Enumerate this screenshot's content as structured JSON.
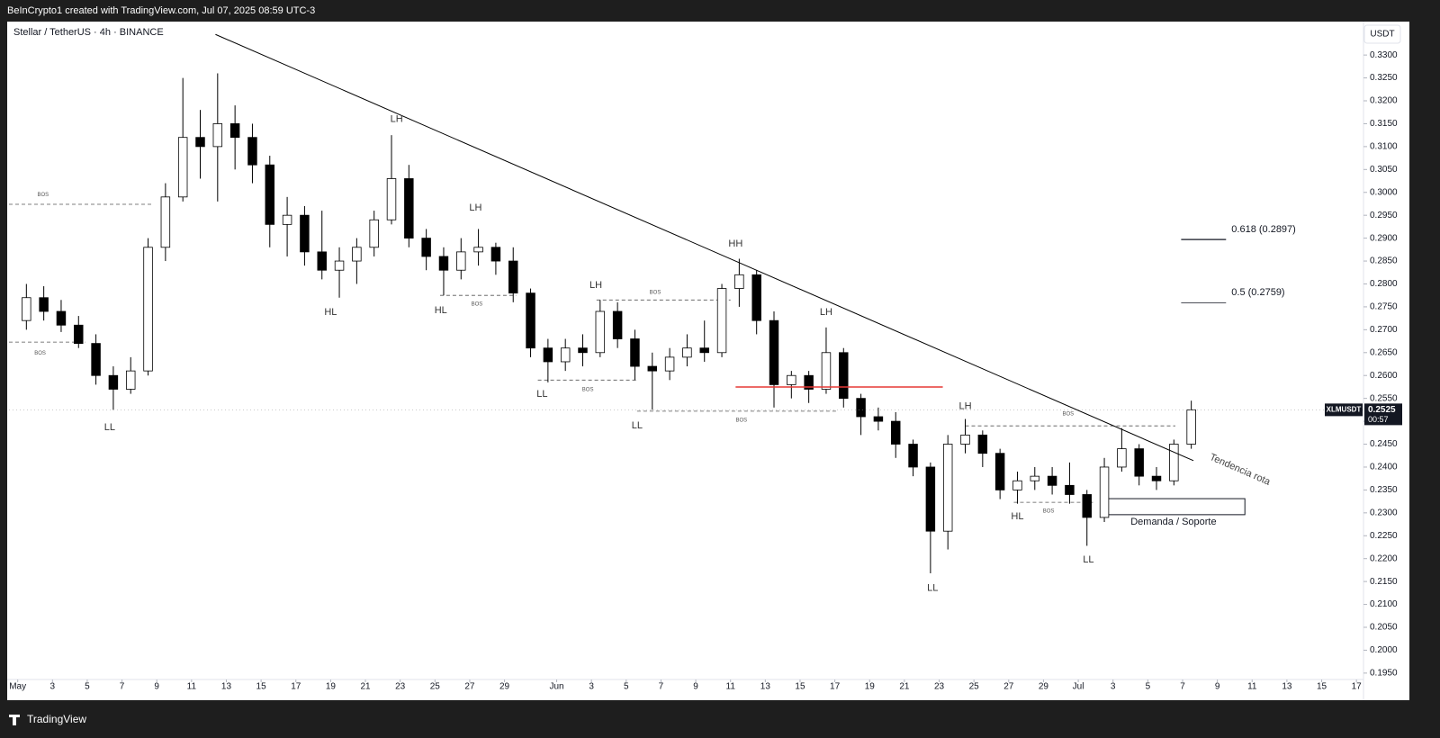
{
  "header": {
    "credit": "BeInCrypto1 created with TradingView.com, Jul 07, 2025 08:59 UTC-3",
    "symbol": "Stellar / TetherUS · 4h · BINANCE",
    "currency": "USDT"
  },
  "footer": {
    "brand": "TradingView"
  },
  "chart_data": {
    "type": "candlestick",
    "up_color": "#ffffff",
    "down_color": "#000000",
    "wick_color": "#000000",
    "grid": false,
    "x": [
      "2025-05-01",
      "2025-05-02",
      "2025-05-03",
      "2025-05-04",
      "2025-05-05",
      "2025-05-06",
      "2025-05-07",
      "2025-05-08",
      "2025-05-09",
      "2025-05-10",
      "2025-05-11",
      "2025-05-12",
      "2025-05-13",
      "2025-05-14",
      "2025-05-15",
      "2025-05-16",
      "2025-05-17",
      "2025-05-18",
      "2025-05-19",
      "2025-05-20",
      "2025-05-21",
      "2025-05-22",
      "2025-05-23",
      "2025-05-24",
      "2025-05-25",
      "2025-05-26",
      "2025-05-27",
      "2025-05-28",
      "2025-05-29",
      "2025-05-30",
      "2025-05-31",
      "2025-06-01",
      "2025-06-02",
      "2025-06-03",
      "2025-06-04",
      "2025-06-05",
      "2025-06-06",
      "2025-06-07",
      "2025-06-08",
      "2025-06-09",
      "2025-06-10",
      "2025-06-11",
      "2025-06-12",
      "2025-06-13",
      "2025-06-14",
      "2025-06-15",
      "2025-06-16",
      "2025-06-17",
      "2025-06-18",
      "2025-06-19",
      "2025-06-20",
      "2025-06-21",
      "2025-06-22",
      "2025-06-23",
      "2025-06-24",
      "2025-06-25",
      "2025-06-26",
      "2025-06-27",
      "2025-06-28",
      "2025-06-29",
      "2025-06-30",
      "2025-07-01",
      "2025-07-02",
      "2025-07-03",
      "2025-07-04",
      "2025-07-05",
      "2025-07-06",
      "2025-07-07"
    ],
    "open": [
      0.272,
      0.277,
      0.274,
      0.271,
      0.267,
      0.26,
      0.257,
      0.261,
      0.288,
      0.299,
      0.312,
      0.31,
      0.315,
      0.312,
      0.306,
      0.293,
      0.295,
      0.287,
      0.283,
      0.285,
      0.288,
      0.294,
      0.303,
      0.29,
      0.286,
      0.283,
      0.287,
      0.288,
      0.285,
      0.278,
      0.266,
      0.263,
      0.266,
      0.265,
      0.274,
      0.268,
      0.262,
      0.261,
      0.264,
      0.266,
      0.265,
      0.279,
      0.282,
      0.272,
      0.258,
      0.26,
      0.257,
      0.265,
      0.255,
      0.251,
      0.25,
      0.245,
      0.24,
      0.226,
      0.245,
      0.247,
      0.243,
      0.235,
      0.237,
      0.238,
      0.236,
      0.234,
      0.229,
      0.24,
      0.244,
      0.238,
      0.237,
      0.245
    ],
    "high": [
      0.28,
      0.2795,
      0.2765,
      0.273,
      0.269,
      0.262,
      0.264,
      0.29,
      0.302,
      0.325,
      0.318,
      0.326,
      0.319,
      0.315,
      0.308,
      0.299,
      0.297,
      0.296,
      0.288,
      0.29,
      0.296,
      0.3125,
      0.306,
      0.292,
      0.288,
      0.29,
      0.292,
      0.289,
      0.288,
      0.279,
      0.268,
      0.268,
      0.269,
      0.2765,
      0.276,
      0.27,
      0.265,
      0.266,
      0.269,
      0.272,
      0.28,
      0.2855,
      0.283,
      0.274,
      0.261,
      0.261,
      0.2705,
      0.266,
      0.256,
      0.253,
      0.252,
      0.246,
      0.241,
      0.247,
      0.2505,
      0.248,
      0.244,
      0.239,
      0.24,
      0.24,
      0.241,
      0.235,
      0.242,
      0.2485,
      0.245,
      0.24,
      0.246,
      0.2545
    ],
    "low": [
      0.27,
      0.272,
      0.2695,
      0.266,
      0.258,
      0.2525,
      0.256,
      0.26,
      0.285,
      0.298,
      0.303,
      0.298,
      0.305,
      0.302,
      0.288,
      0.286,
      0.284,
      0.281,
      0.277,
      0.28,
      0.286,
      0.293,
      0.288,
      0.283,
      0.2775,
      0.281,
      0.284,
      0.282,
      0.276,
      0.264,
      0.2585,
      0.261,
      0.262,
      0.264,
      0.266,
      0.259,
      0.2525,
      0.259,
      0.262,
      0.263,
      0.264,
      0.275,
      0.269,
      0.253,
      0.255,
      0.254,
      0.256,
      0.253,
      0.247,
      0.248,
      0.242,
      0.238,
      0.2168,
      0.222,
      0.243,
      0.24,
      0.233,
      0.232,
      0.235,
      0.234,
      0.232,
      0.2228,
      0.228,
      0.239,
      0.236,
      0.235,
      0.236,
      0.244
    ],
    "close": [
      0.277,
      0.274,
      0.271,
      0.267,
      0.26,
      0.257,
      0.261,
      0.288,
      0.299,
      0.312,
      0.31,
      0.315,
      0.312,
      0.306,
      0.293,
      0.295,
      0.287,
      0.283,
      0.285,
      0.288,
      0.294,
      0.303,
      0.29,
      0.286,
      0.283,
      0.287,
      0.288,
      0.285,
      0.278,
      0.266,
      0.263,
      0.266,
      0.265,
      0.274,
      0.268,
      0.262,
      0.261,
      0.264,
      0.266,
      0.265,
      0.279,
      0.282,
      0.272,
      0.258,
      0.26,
      0.257,
      0.265,
      0.255,
      0.251,
      0.25,
      0.245,
      0.24,
      0.226,
      0.245,
      0.247,
      0.243,
      0.235,
      0.237,
      0.238,
      0.236,
      0.234,
      0.229,
      0.24,
      0.244,
      0.238,
      0.237,
      0.245,
      0.2525
    ],
    "xlim": [
      "2025-04-30T12:00Z",
      "2025-07-17T06:00Z"
    ],
    "ylim": [
      0.1936,
      0.3373
    ],
    "xticks": [
      {
        "value": "2025-05-01",
        "label": "May"
      },
      {
        "value": "2025-05-03",
        "label": "3"
      },
      {
        "value": "2025-05-05",
        "label": "5"
      },
      {
        "value": "2025-05-07",
        "label": "7"
      },
      {
        "value": "2025-05-09",
        "label": "9"
      },
      {
        "value": "2025-05-11",
        "label": "11"
      },
      {
        "value": "2025-05-13",
        "label": "13"
      },
      {
        "value": "2025-05-15",
        "label": "15"
      },
      {
        "value": "2025-05-17",
        "label": "17"
      },
      {
        "value": "2025-05-19",
        "label": "19"
      },
      {
        "value": "2025-05-21",
        "label": "21"
      },
      {
        "value": "2025-05-23",
        "label": "23"
      },
      {
        "value": "2025-05-25",
        "label": "25"
      },
      {
        "value": "2025-05-27",
        "label": "27"
      },
      {
        "value": "2025-05-29",
        "label": "29"
      },
      {
        "value": "2025-06-01",
        "label": "Jun"
      },
      {
        "value": "2025-06-03",
        "label": "3"
      },
      {
        "value": "2025-06-05",
        "label": "5"
      },
      {
        "value": "2025-06-07",
        "label": "7"
      },
      {
        "value": "2025-06-09",
        "label": "9"
      },
      {
        "value": "2025-06-11",
        "label": "11"
      },
      {
        "value": "2025-06-13",
        "label": "13"
      },
      {
        "value": "2025-06-15",
        "label": "15"
      },
      {
        "value": "2025-06-17",
        "label": "17"
      },
      {
        "value": "2025-06-19",
        "label": "19"
      },
      {
        "value": "2025-06-21",
        "label": "21"
      },
      {
        "value": "2025-06-23",
        "label": "23"
      },
      {
        "value": "2025-06-25",
        "label": "25"
      },
      {
        "value": "2025-06-27",
        "label": "27"
      },
      {
        "value": "2025-06-29",
        "label": "29"
      },
      {
        "value": "2025-07-01",
        "label": "Jul"
      },
      {
        "value": "2025-07-03",
        "label": "3"
      },
      {
        "value": "2025-07-05",
        "label": "5"
      },
      {
        "value": "2025-07-07",
        "label": "7"
      },
      {
        "value": "2025-07-09",
        "label": "9"
      },
      {
        "value": "2025-07-11",
        "label": "11"
      },
      {
        "value": "2025-07-13",
        "label": "13"
      },
      {
        "value": "2025-07-15",
        "label": "15"
      },
      {
        "value": "2025-07-17",
        "label": "17"
      }
    ],
    "yticks": [
      {
        "value": 0.195,
        "label": "0.1950"
      },
      {
        "value": 0.2,
        "label": "0.2000"
      },
      {
        "value": 0.205,
        "label": "0.2050"
      },
      {
        "value": 0.21,
        "label": "0.2100"
      },
      {
        "value": 0.215,
        "label": "0.2150"
      },
      {
        "value": 0.22,
        "label": "0.2200"
      },
      {
        "value": 0.225,
        "label": "0.2250"
      },
      {
        "value": 0.23,
        "label": "0.2300"
      },
      {
        "value": 0.235,
        "label": "0.2350"
      },
      {
        "value": 0.24,
        "label": "0.2400"
      },
      {
        "value": 0.245,
        "label": "0.2450"
      },
      {
        "value": 0.25,
        "label": "0.2500"
      },
      {
        "value": 0.255,
        "label": "0.2550"
      },
      {
        "value": 0.26,
        "label": "0.2600"
      },
      {
        "value": 0.265,
        "label": "0.2650"
      },
      {
        "value": 0.27,
        "label": "0.2700"
      },
      {
        "value": 0.275,
        "label": "0.2750"
      },
      {
        "value": 0.28,
        "label": "0.2800"
      },
      {
        "value": 0.285,
        "label": "0.2850"
      },
      {
        "value": 0.29,
        "label": "0.2900"
      },
      {
        "value": 0.295,
        "label": "0.2950"
      },
      {
        "value": 0.3,
        "label": "0.3000"
      },
      {
        "value": 0.305,
        "label": "0.3050"
      },
      {
        "value": 0.31,
        "label": "0.3100"
      },
      {
        "value": 0.315,
        "label": "0.3150"
      },
      {
        "value": 0.32,
        "label": "0.3200"
      },
      {
        "value": 0.325,
        "label": "0.3250"
      },
      {
        "value": 0.33,
        "label": "0.3300"
      }
    ],
    "trendline": {
      "x": [
        "2025-05-12T09:00Z",
        "2025-07-07T15:00Z"
      ],
      "y": [
        0.3345,
        0.2414
      ],
      "color": "#000000",
      "label": "Tendencia rota",
      "label_x": "2025-07-10T07:00Z",
      "label_y": 0.2394
    },
    "levels": [
      {
        "x": [
          "2025-04-30T12:00Z",
          "2025-05-08T18:00Z"
        ],
        "y": 0.2974
      },
      {
        "x": [
          "2025-04-30T12:00Z",
          "2025-05-04T21:00Z"
        ],
        "y": 0.2673
      },
      {
        "x": [
          "2025-05-25T07:00Z",
          "2025-05-29T16:00Z"
        ],
        "y": 0.2775
      },
      {
        "x": [
          "2025-06-03T07:00Z",
          "2025-06-11T00:00Z"
        ],
        "y": 0.2765
      },
      {
        "x": [
          "2025-05-30T22:00Z",
          "2025-06-05T15:00Z"
        ],
        "y": 0.259
      },
      {
        "x": [
          "2025-06-05T15:00Z",
          "2025-06-17T05:00Z"
        ],
        "y": 0.2522
      },
      {
        "x": [
          "2025-06-24T12:00Z",
          "2025-07-06T14:00Z"
        ],
        "y": 0.249
      },
      {
        "x": [
          "2025-06-27T07:00Z",
          "2025-07-01T23:00Z"
        ],
        "y": 0.2323
      }
    ],
    "bos_labels": [
      {
        "text": "BOS",
        "x": "2025-05-02T11:00Z",
        "y": 0.2995
      },
      {
        "text": "BOS",
        "x": "2025-05-02T07:00Z",
        "y": 0.2649
      },
      {
        "text": "BOS",
        "x": "2025-05-27T10:00Z",
        "y": 0.2756
      },
      {
        "text": "BOS",
        "x": "2025-06-06T16:00Z",
        "y": 0.2781
      },
      {
        "text": "BOS",
        "x": "2025-06-02T19:00Z",
        "y": 0.2569
      },
      {
        "text": "BOS",
        "x": "2025-06-11T15:00Z",
        "y": 0.2502
      },
      {
        "text": "BOS",
        "x": "2025-06-30T10:00Z",
        "y": 0.2516
      },
      {
        "text": "BOS",
        "x": "2025-06-29T07:00Z",
        "y": 0.2304
      }
    ],
    "swing_labels": [
      {
        "text": "LL",
        "x": "2025-05-06T07:00Z",
        "y": 0.2486
      },
      {
        "text": "HL",
        "x": "2025-05-19T00:00Z",
        "y": 0.2738
      },
      {
        "text": "LH",
        "x": "2025-05-22T19:00Z",
        "y": 0.316
      },
      {
        "text": "HL",
        "x": "2025-05-25T08:00Z",
        "y": 0.2742
      },
      {
        "text": "LH",
        "x": "2025-05-27T08:00Z",
        "y": 0.2966
      },
      {
        "text": "LL",
        "x": "2025-05-31T04:00Z",
        "y": 0.2559
      },
      {
        "text": "LH",
        "x": "2025-06-03T06:00Z",
        "y": 0.2797
      },
      {
        "text": "LL",
        "x": "2025-06-05T15:00Z",
        "y": 0.249
      },
      {
        "text": "HH",
        "x": "2025-06-11T07:00Z",
        "y": 0.2887
      },
      {
        "text": "LH",
        "x": "2025-06-16T12:00Z",
        "y": 0.2738
      },
      {
        "text": "LL",
        "x": "2025-06-22T15:00Z",
        "y": 0.2135
      },
      {
        "text": "LH",
        "x": "2025-06-24T12:00Z",
        "y": 0.2532
      },
      {
        "text": "HL",
        "x": "2025-06-27T12:00Z",
        "y": 0.2292
      },
      {
        "text": "LL",
        "x": "2025-07-01T14:00Z",
        "y": 0.2197
      }
    ],
    "fib": [
      {
        "level": 0.2897,
        "label": "0.618 (0.2897)",
        "x": [
          "2025-07-06T22:00Z",
          "2025-07-09T12:00Z"
        ]
      },
      {
        "level": 0.2759,
        "label": "0.5 (0.2759)",
        "x": [
          "2025-07-06T22:00Z",
          "2025-07-09T12:00Z"
        ]
      }
    ],
    "poc": {
      "y": 0.2575,
      "x": [
        "2025-06-11T07:00Z",
        "2025-06-23T05:00Z"
      ],
      "color": "#e53935"
    },
    "zone": {
      "label": "Demanda / Soporte",
      "x": [
        "2025-07-02T09:00Z",
        "2025-07-10T14:00Z"
      ],
      "y": [
        0.2296,
        0.2331
      ],
      "label_y": 0.228
    },
    "last": {
      "symbol": "XLMUSDT",
      "price": 0.2525,
      "countdown": "00:57"
    }
  }
}
